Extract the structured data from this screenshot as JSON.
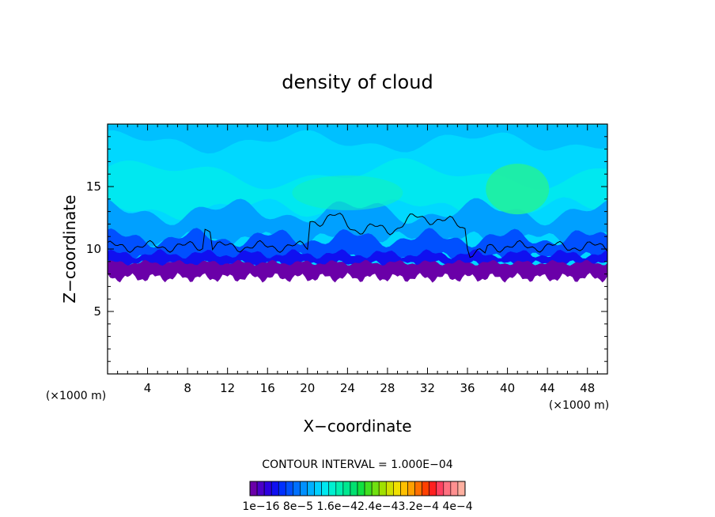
{
  "chart_data": {
    "type": "heatmap",
    "title": "density of cloud",
    "xlabel": "X−coordinate",
    "ylabel": "Z−coordinate",
    "x_units": "(×1000 m)",
    "x_units_right": "(×1000 m)",
    "xlim": [
      0,
      50
    ],
    "ylim": [
      0,
      20
    ],
    "x_ticks": [
      4,
      8,
      12,
      16,
      20,
      24,
      28,
      32,
      36,
      40,
      44,
      48
    ],
    "y_ticks": [
      5,
      10,
      15
    ],
    "contour_interval": "CONTOUR INTERVAL = 1.000E−04",
    "colorbar": {
      "labels": [
        "1e−16",
        "8e−5",
        "1.6e−4",
        "2.4e−4",
        "3.2e−4",
        "4e−4"
      ],
      "label_text": "1e−16  8e−5  1.6e−42.4e−43.2e−4  4e−4",
      "colors": [
        "#6a00a8",
        "#4b00c8",
        "#2d00e0",
        "#1010f0",
        "#0030ff",
        "#0050ff",
        "#0070ff",
        "#0090ff",
        "#00b0ff",
        "#00d0ff",
        "#00e8f0",
        "#00f0d0",
        "#00f0b0",
        "#00e890",
        "#00e070",
        "#10e040",
        "#40e020",
        "#70e010",
        "#a0e000",
        "#d0e000",
        "#f0e000",
        "#ffc000",
        "#ffa000",
        "#ff7000",
        "#ff4000",
        "#ff2020",
        "#ff4060",
        "#ff7080",
        "#ff9090",
        "#ffb0a0"
      ]
    },
    "field_description_colors": {
      "background_upper": "#00d8ff",
      "light_band": "#00e8f0",
      "mid_blue": "#00a0ff",
      "deep_blue": "#0050ff",
      "dark_blue": "#1010f0",
      "base_purple": "#6a00a8",
      "bright_patch": "#20f0a0",
      "contour_line": "#000000"
    },
    "grid": false
  }
}
